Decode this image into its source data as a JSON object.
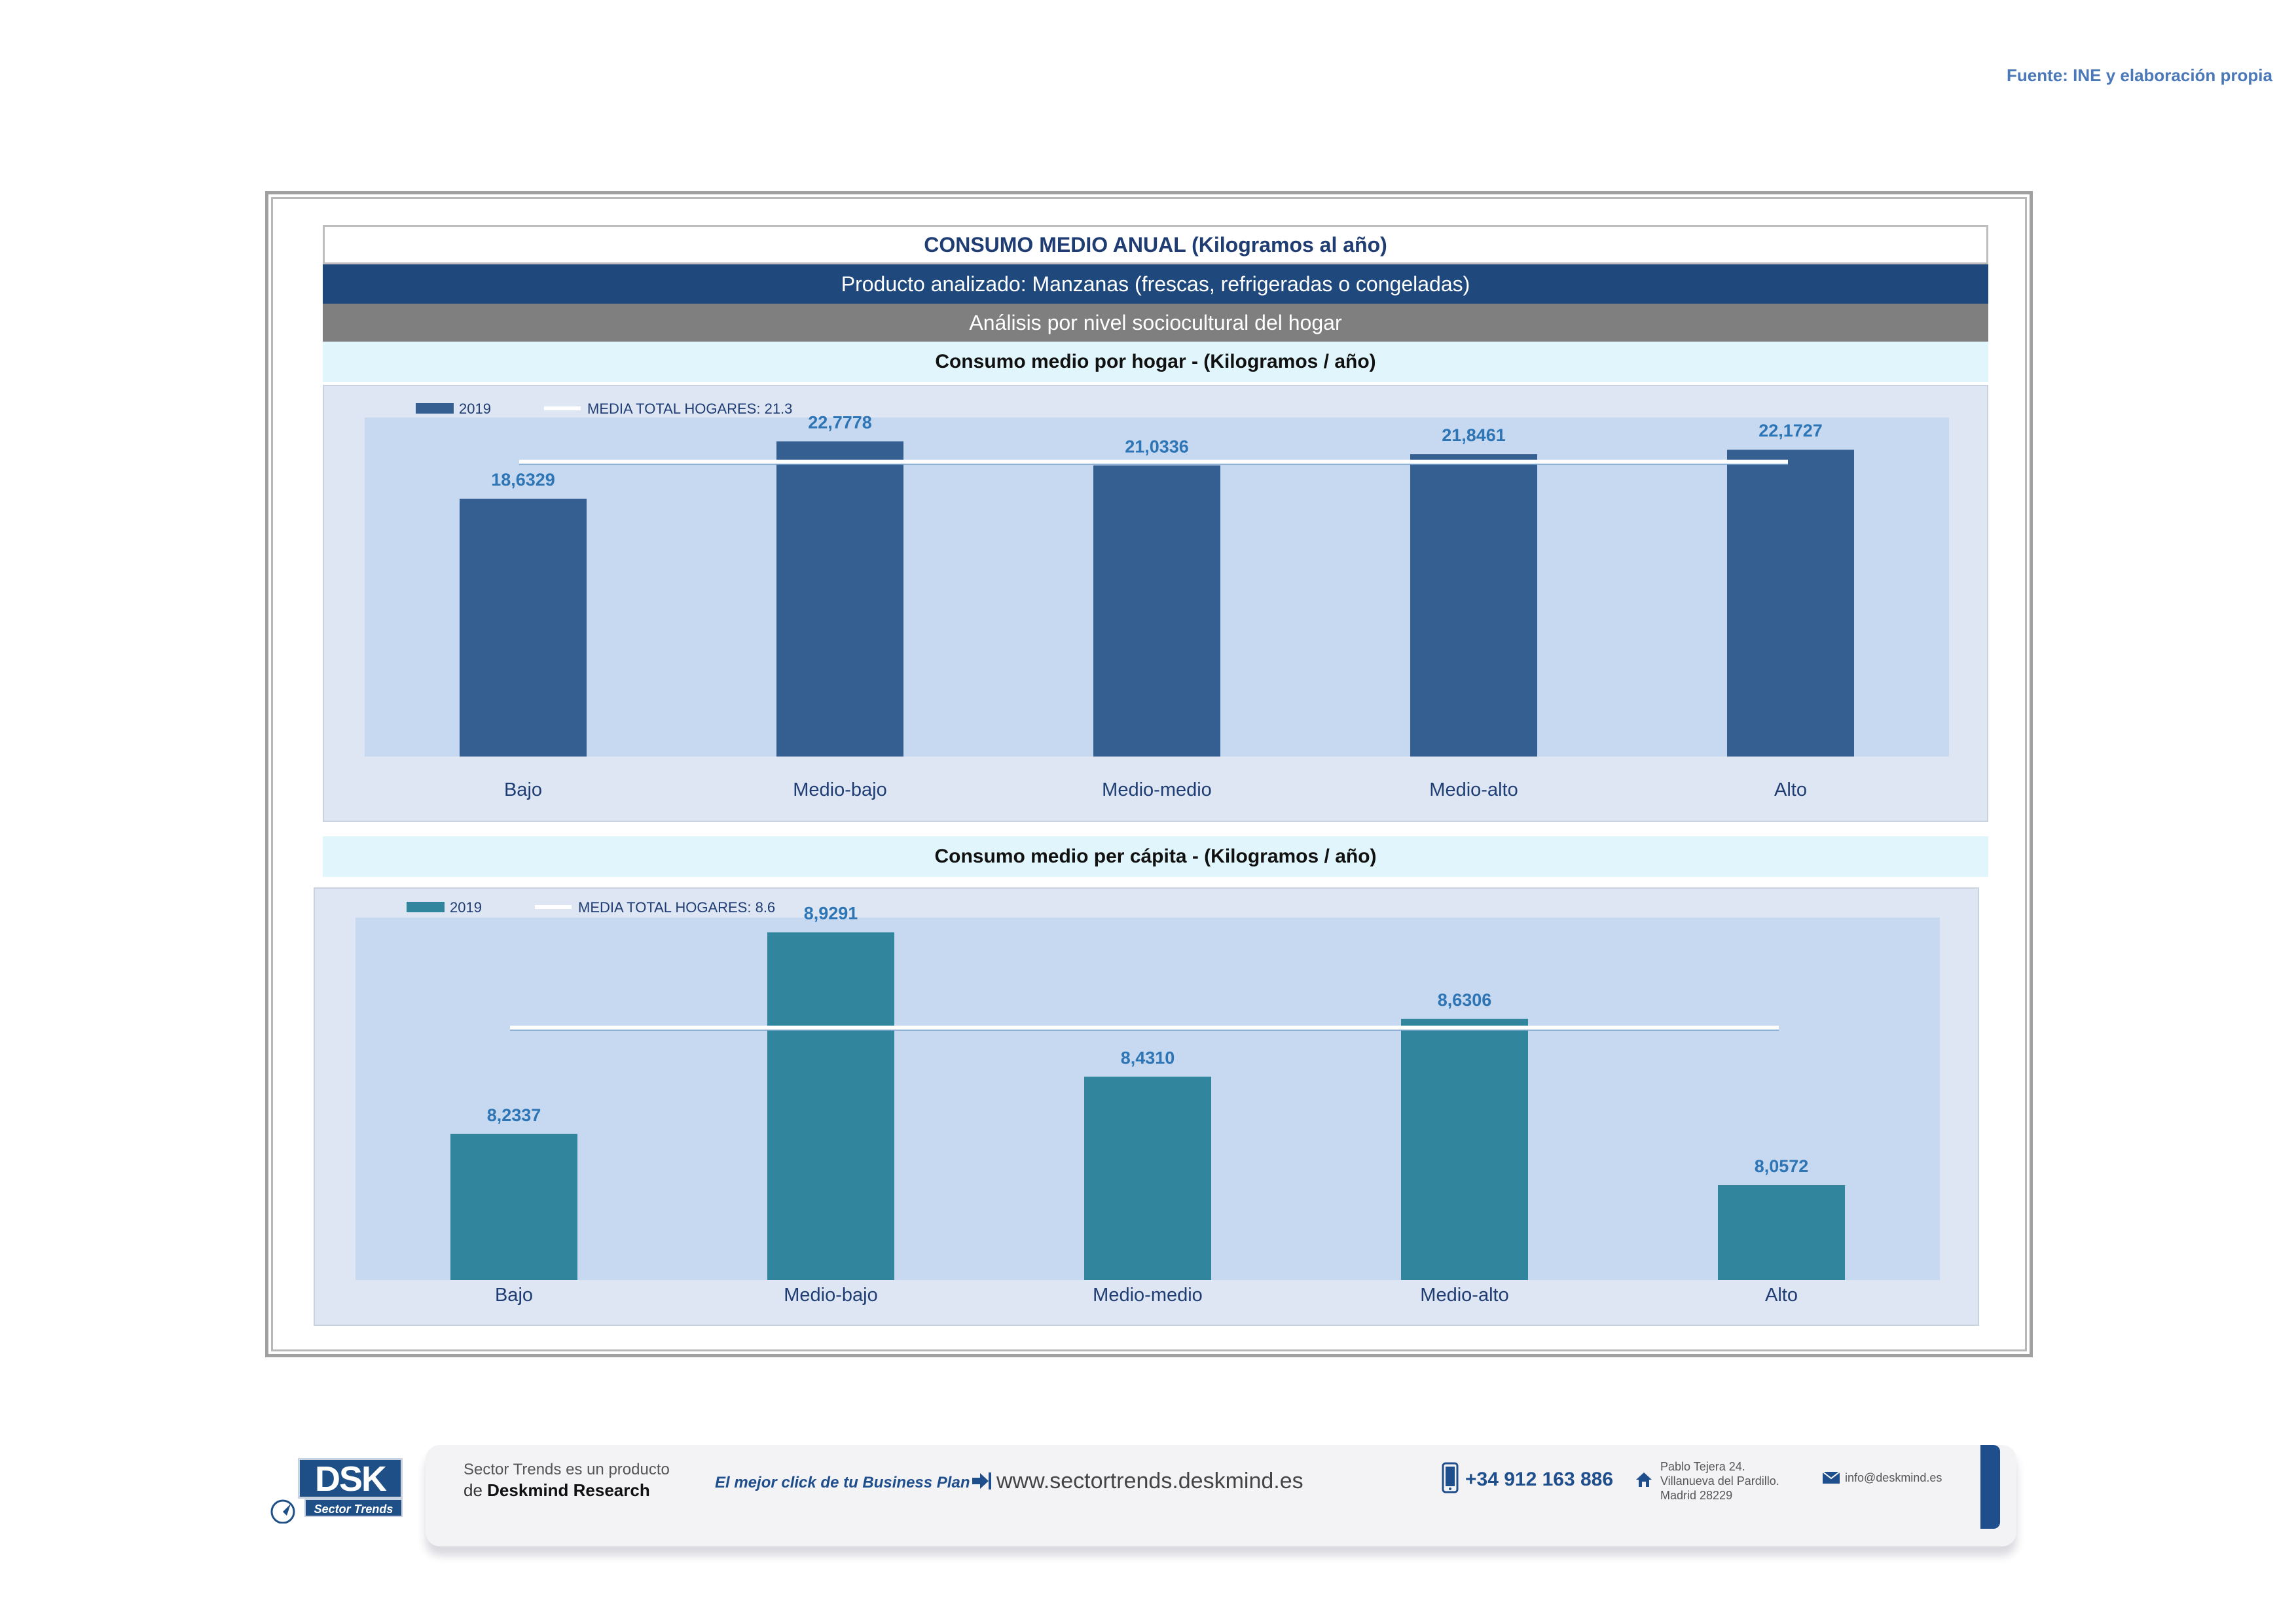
{
  "source": "Fuente: INE y elaboración propia",
  "header": {
    "title": "CONSUMO MEDIO ANUAL (Kilogramos al año)",
    "product": "Producto analizado: Manzanas (frescas, refrigeradas o congeladas)",
    "analysis": "Análisis por nivel sociocultural del hogar"
  },
  "chart_data": [
    {
      "type": "bar",
      "title": "Consumo medio por hogar -  (Kilogramos / año)",
      "categories": [
        "Bajo",
        "Medio-bajo",
        "Medio-medio",
        "Medio-alto",
        "Alto"
      ],
      "series": [
        {
          "name": "2019",
          "values": [
            18.6329,
            22.7778,
            21.0336,
            21.8461,
            22.1727
          ],
          "labels": [
            "18,6329",
            "22,7778",
            "21,0336",
            "21,8461",
            "22,1727"
          ],
          "color": "#365f91"
        }
      ],
      "reference_line": {
        "name": "MEDIA TOTAL  HOGARES:",
        "value": 21.3,
        "label": "21.3",
        "color": "#ffffff"
      },
      "ylim": [
        0,
        24.5
      ],
      "label_color": "#2e75b6",
      "plot_bg": "#c6d9f0",
      "grid": false,
      "legend": "top-left"
    },
    {
      "type": "bar",
      "title": "Consumo medio per cápita -  (Kilogramos / año)",
      "categories": [
        "Bajo",
        "Medio-bajo",
        "Medio-medio",
        "Medio-alto",
        "Alto"
      ],
      "series": [
        {
          "name": "2019",
          "values": [
            8.2337,
            8.9291,
            8.431,
            8.6306,
            8.0572
          ],
          "labels": [
            "8,2337",
            "8,9291",
            "8,4310",
            "8,6306",
            "8,0572"
          ],
          "color": "#31859c"
        }
      ],
      "reference_line": {
        "name": "MEDIA TOTAL  HOGARES:",
        "value": 8.6,
        "label": "8.6",
        "color": "#ffffff"
      },
      "ylim": [
        7.73,
        8.98
      ],
      "label_color": "#2e75b6",
      "plot_bg": "#c6d9f0",
      "grid": false,
      "legend": "top-left"
    }
  ],
  "footer": {
    "logo_text": "DSK",
    "logo_sub": "Sector Trends",
    "product_line1": "Sector Trends es un producto",
    "product_line2_prefix": "de",
    "product_line2_brand": "Deskmind Research",
    "slogan": "El mejor click de tu Business Plan",
    "website": "www.sectortrends.deskmind.es",
    "phone": "+34 912 163 886",
    "address": [
      "Pablo Tejera 24.",
      "Villanueva del Pardillo.",
      "Madrid 28229"
    ],
    "email": "info@deskmind.es",
    "icons": [
      "arrow-login-icon",
      "mobile-phone-icon",
      "home-icon",
      "envelope-icon"
    ]
  }
}
